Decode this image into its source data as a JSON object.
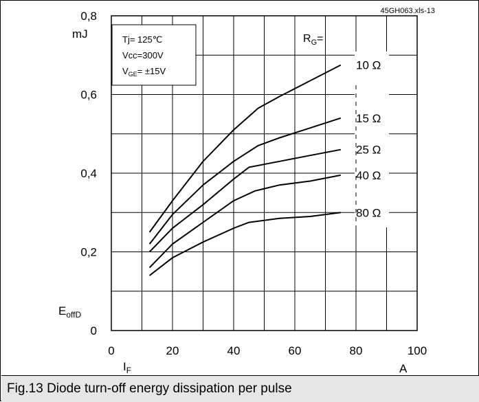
{
  "caption": "Fig.13 Diode turn-off energy dissipation per pulse",
  "chart_data": {
    "type": "line",
    "file_tag": "45GH063.xls-13",
    "ylim": [
      0,
      0.8
    ],
    "xlim": [
      0,
      100
    ],
    "yticks": [
      "0",
      "0,2",
      "0,4",
      "0,6",
      "0,8"
    ],
    "ytick_values": [
      0,
      0.2,
      0.4,
      0.6,
      0.8
    ],
    "xticks": [
      "0",
      "20",
      "40",
      "60",
      "80",
      "100"
    ],
    "xtick_values": [
      0,
      20,
      40,
      60,
      80,
      100
    ],
    "y_unit": "mJ",
    "y_symbol": "E",
    "y_symbol_sub": "offD",
    "x_symbol": "I",
    "x_symbol_sub": "F",
    "x_unit": "A",
    "conditions": [
      {
        "main": "Tj= 125℃",
        "sub": "",
        "rest": ""
      },
      {
        "main": "Vcc=300V",
        "sub": "",
        "rest": ""
      },
      {
        "main": "V",
        "sub": "GE",
        "rest": "= ±15V"
      }
    ],
    "param_label": {
      "main": "R",
      "sub": "G",
      "rest": "="
    },
    "grid": true,
    "series": [
      {
        "name": "10 Ω",
        "x": [
          12.5,
          20,
          30,
          40,
          48,
          55,
          65,
          75
        ],
        "y": [
          0.25,
          0.33,
          0.43,
          0.51,
          0.565,
          0.595,
          0.635,
          0.675
        ]
      },
      {
        "name": "15 Ω",
        "x": [
          12.5,
          20,
          30,
          40,
          48,
          55,
          65,
          75
        ],
        "y": [
          0.22,
          0.295,
          0.37,
          0.43,
          0.47,
          0.49,
          0.515,
          0.54
        ]
      },
      {
        "name": "25 Ω",
        "x": [
          12.5,
          20,
          30,
          40,
          45,
          55,
          65,
          75
        ],
        "y": [
          0.2,
          0.26,
          0.32,
          0.385,
          0.415,
          0.43,
          0.445,
          0.46
        ]
      },
      {
        "name": "40 Ω",
        "x": [
          12.5,
          20,
          30,
          40,
          47,
          55,
          65,
          75
        ],
        "y": [
          0.16,
          0.22,
          0.275,
          0.33,
          0.355,
          0.37,
          0.38,
          0.395
        ]
      },
      {
        "name": "80 Ω",
        "x": [
          12.5,
          20,
          30,
          40,
          45,
          55,
          65,
          75
        ],
        "y": [
          0.14,
          0.185,
          0.225,
          0.26,
          0.275,
          0.285,
          0.29,
          0.3
        ]
      }
    ]
  }
}
